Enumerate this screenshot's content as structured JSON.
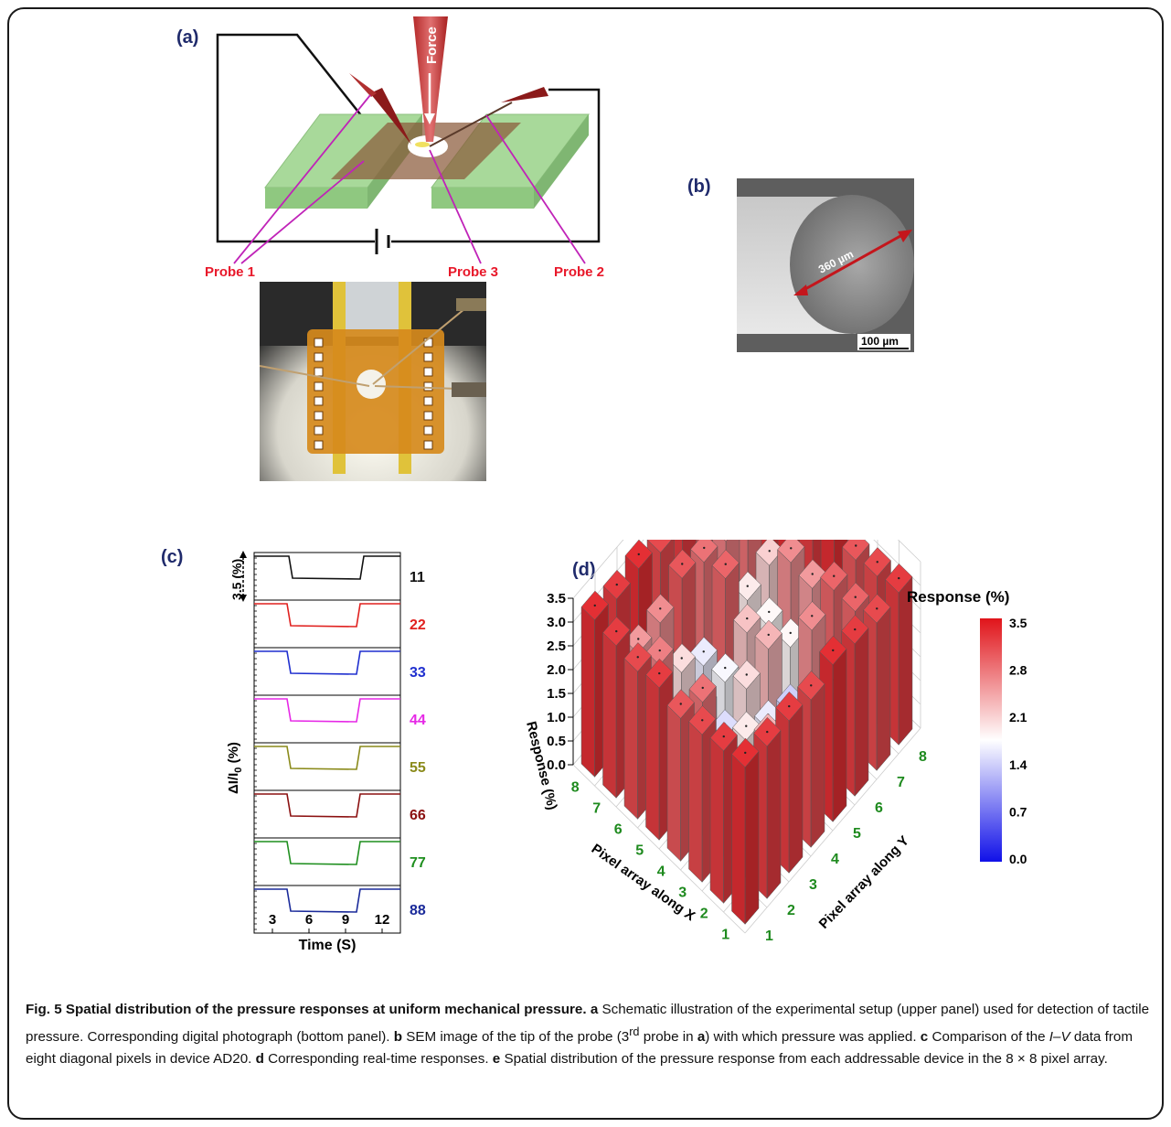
{
  "panel_labels": {
    "a": "(a)",
    "b": "(b)",
    "c": "(c)",
    "d": "(d)"
  },
  "panel_a": {
    "force_label": "Force",
    "probe1": "Probe 1",
    "probe2": "Probe 2",
    "probe3": "Probe 3",
    "colors": {
      "probe_label": "#e8182a",
      "pointer_line": "#c023b8",
      "electrode": "#a8d99a",
      "film": "#8a5a3a"
    }
  },
  "panel_b": {
    "diameter_label": "360 µm",
    "scale_bar": "100 µm"
  },
  "panel_c": {
    "scale_label": "3.5 (%)",
    "ylabel": "ΔI/I",
    "ylabel_sub": "0",
    "ylabel_unit": " (%)",
    "xlabel": "Time (S)",
    "xticks": [
      "3",
      "6",
      "9",
      "12"
    ],
    "traces": [
      {
        "label": "11",
        "color": "#111111"
      },
      {
        "label": "22",
        "color": "#e0201e"
      },
      {
        "label": "33",
        "color": "#1f2fcf"
      },
      {
        "label": "44",
        "color": "#e628e6"
      },
      {
        "label": "55",
        "color": "#8a8a1a"
      },
      {
        "label": "66",
        "color": "#8b1010"
      },
      {
        "label": "77",
        "color": "#1f8f1f"
      },
      {
        "label": "88",
        "color": "#1a2a9a"
      }
    ]
  },
  "chart_data": {
    "type": "bar3d",
    "zlabel": "Response (%)",
    "xlabel": "Pixel array along X",
    "ylabel": "Pixel array along Y",
    "zticks": [
      "0.0",
      "0.5",
      "1.0",
      "1.5",
      "2.0",
      "2.5",
      "3.0",
      "3.5"
    ],
    "x_ticks": [
      "1",
      "2",
      "3",
      "4",
      "5",
      "6",
      "7",
      "8"
    ],
    "y_ticks": [
      "1",
      "2",
      "3",
      "4",
      "5",
      "6",
      "7",
      "8"
    ],
    "zlim": [
      0,
      3.5
    ],
    "colorbar": {
      "title": "Response (%)",
      "ticks": [
        "3.5",
        "2.8",
        "2.1",
        "1.4",
        "0.7",
        "0.0"
      ],
      "high": "#e0141a",
      "mid": "#ffffff",
      "low": "#1010e8"
    },
    "values": [
      [
        3.3,
        3.2,
        3.2,
        3.1,
        3.3,
        3.2,
        3.1,
        3.2
      ],
      [
        3.2,
        2.0,
        2.3,
        2.1,
        1.9,
        1.7,
        2.9,
        3.1
      ],
      [
        3.1,
        1.5,
        1.9,
        1.6,
        1.4,
        2.6,
        2.9,
        3.0
      ],
      [
        3.0,
        2.8,
        1.5,
        2.0,
        2.3,
        1.8,
        2.5,
        3.3
      ],
      [
        3.2,
        1.8,
        1.6,
        1.7,
        2.2,
        1.8,
        2.6,
        3.2
      ],
      [
        3.1,
        2.7,
        2.0,
        1.6,
        2.9,
        1.9,
        2.1,
        3.3
      ],
      [
        3.2,
        2.5,
        2.6,
        3.0,
        2.8,
        2.7,
        2.8,
        3.2
      ],
      [
        3.3,
        3.2,
        3.3,
        3.1,
        3.2,
        3.0,
        3.0,
        3.1
      ]
    ]
  },
  "caption": {
    "fig": "Fig. 5",
    "title": " Spatial distribution of the pressure responses at uniform mechanical pressure.",
    "a_letter": "a",
    "a_text": " Schematic illustration of the experimental setup (upper panel) used for detection of tactile pressure. Corresponding digital photograph (bottom panel).",
    "b_letter": "b",
    "b_text1": " SEM image of the tip of the probe (3",
    "b_sup": "rd",
    "b_text2": " probe in ",
    "b_ref": "a",
    "b_text3": ") with which pressure was applied.",
    "c_letter": "c",
    "c_text1": " Comparison of the ",
    "c_iv": "I–V",
    "c_text2": " data from eight diagonal pixels in device AD20.",
    "d_letter": "d",
    "d_text": " Corresponding real-time responses.",
    "e_letter": "e",
    "e_text": " Spatial distribution of the pressure response from each addressable device in the 8 × 8 pixel array."
  }
}
